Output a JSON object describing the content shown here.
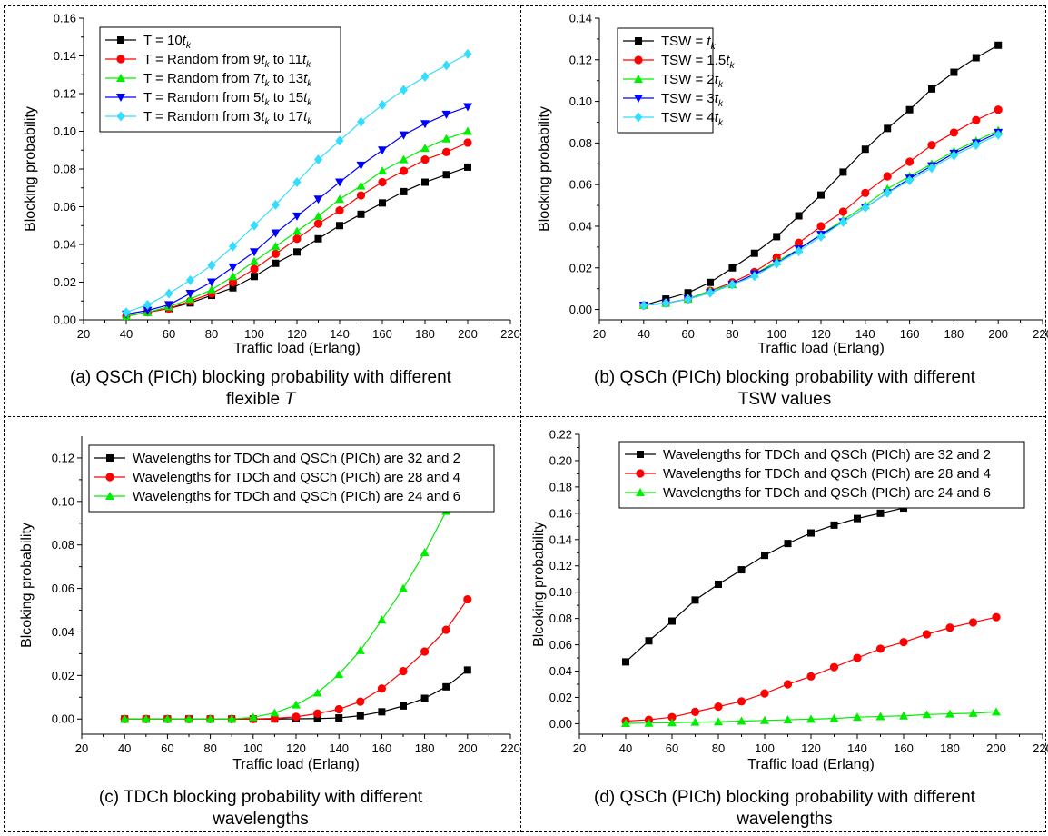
{
  "chart_data": [
    {
      "type": "line",
      "xlabel": "Traffic load (Erlang)",
      "ylabel": "Blocking probability",
      "xlim": [
        20,
        220
      ],
      "ylim": [
        0,
        0.16
      ],
      "x_ticks": [
        "20",
        "40",
        "60",
        "80",
        "100",
        "120",
        "140",
        "160",
        "180",
        "200",
        "220"
      ],
      "y_ticks": [
        "0.00",
        "0.02",
        "0.04",
        "0.06",
        "0.08",
        "0.10",
        "0.12",
        "0.14",
        "0.16"
      ],
      "legend_position": "top-left",
      "caption_line1": "(a) QSCh (PICh) blocking probability with different",
      "caption_line2": "flexible ",
      "caption_line2_italic": "T",
      "x": [
        40,
        50,
        60,
        70,
        80,
        90,
        100,
        110,
        120,
        130,
        140,
        150,
        160,
        170,
        180,
        190,
        200
      ],
      "series": [
        {
          "name_pre": "T = 10",
          "name_var": "t",
          "name_sub": "k",
          "name_post": "",
          "color": "#000000",
          "marker": "square",
          "values": [
            0.002,
            0.004,
            0.006,
            0.009,
            0.013,
            0.017,
            0.023,
            0.03,
            0.036,
            0.043,
            0.05,
            0.056,
            0.062,
            0.068,
            0.073,
            0.077,
            0.081
          ]
        },
        {
          "name_pre": "T = Random from 9",
          "name_var": "t",
          "name_sub": "k",
          "name_post": " to 11",
          "name_var2": "t",
          "name_sub2": "k",
          "color": "#ff0000",
          "marker": "circle",
          "values": [
            0.002,
            0.004,
            0.006,
            0.01,
            0.014,
            0.02,
            0.027,
            0.035,
            0.043,
            0.051,
            0.058,
            0.066,
            0.073,
            0.079,
            0.085,
            0.089,
            0.094
          ]
        },
        {
          "name_pre": "T = Random from 7",
          "name_var": "t",
          "name_sub": "k",
          "name_post": " to 13",
          "name_var2": "t",
          "name_sub2": "k",
          "color": "#00ee00",
          "marker": "triangle-up",
          "values": [
            0.002,
            0.004,
            0.007,
            0.011,
            0.016,
            0.023,
            0.031,
            0.039,
            0.047,
            0.055,
            0.064,
            0.071,
            0.079,
            0.085,
            0.091,
            0.096,
            0.1
          ]
        },
        {
          "name_pre": "T = Random from 5",
          "name_var": "t",
          "name_sub": "k",
          "name_post": " to 15",
          "name_var2": "t",
          "name_sub2": "k",
          "color": "#0000ff",
          "marker": "triangle-down",
          "values": [
            0.003,
            0.005,
            0.008,
            0.014,
            0.02,
            0.028,
            0.036,
            0.046,
            0.055,
            0.064,
            0.073,
            0.082,
            0.09,
            0.098,
            0.104,
            0.109,
            0.113
          ]
        },
        {
          "name_pre": "T = Random from 3",
          "name_var": "t",
          "name_sub": "k",
          "name_post": " to 17",
          "name_var2": "t",
          "name_sub2": "k",
          "color": "#33ddff",
          "marker": "diamond",
          "values": [
            0.004,
            0.008,
            0.014,
            0.021,
            0.029,
            0.039,
            0.05,
            0.061,
            0.073,
            0.085,
            0.095,
            0.105,
            0.114,
            0.122,
            0.129,
            0.135,
            0.141
          ]
        }
      ]
    },
    {
      "type": "line",
      "xlabel": "Traffic load (Erlang)",
      "ylabel": "Blocking probability",
      "xlim": [
        20,
        220
      ],
      "ylim": [
        -0.005,
        0.14
      ],
      "x_ticks": [
        "20",
        "40",
        "60",
        "80",
        "100",
        "120",
        "140",
        "160",
        "180",
        "200",
        "220"
      ],
      "y_ticks": [
        "0.00",
        "0.02",
        "0.04",
        "0.06",
        "0.08",
        "0.10",
        "0.12",
        "0.14"
      ],
      "legend_position": "top-left",
      "caption_line1": "(b) QSCh (PICh) blocking probability with different",
      "caption_line2": "TSW values",
      "caption_line2_italic": "",
      "x": [
        40,
        50,
        60,
        70,
        80,
        90,
        100,
        110,
        120,
        130,
        140,
        150,
        160,
        170,
        180,
        190,
        200
      ],
      "series": [
        {
          "name_pre": "TSW = ",
          "name_var": "t",
          "name_sub": "k",
          "name_post": "",
          "color": "#000000",
          "marker": "square",
          "values": [
            0.002,
            0.005,
            0.008,
            0.013,
            0.02,
            0.027,
            0.035,
            0.045,
            0.055,
            0.066,
            0.077,
            0.087,
            0.096,
            0.106,
            0.114,
            0.121,
            0.127
          ]
        },
        {
          "name_pre": "TSW = 1.5",
          "name_var": "t",
          "name_sub": "k",
          "name_post": "",
          "color": "#ff0000",
          "marker": "circle",
          "values": [
            0.002,
            0.003,
            0.005,
            0.009,
            0.013,
            0.018,
            0.025,
            0.032,
            0.04,
            0.047,
            0.056,
            0.064,
            0.071,
            0.079,
            0.085,
            0.091,
            0.096
          ]
        },
        {
          "name_pre": "TSW = 2",
          "name_var": "t",
          "name_sub": "k",
          "name_post": "",
          "color": "#00ee00",
          "marker": "triangle-up",
          "values": [
            0.002,
            0.003,
            0.005,
            0.009,
            0.012,
            0.017,
            0.023,
            0.029,
            0.036,
            0.043,
            0.05,
            0.058,
            0.064,
            0.07,
            0.076,
            0.081,
            0.086
          ]
        },
        {
          "name_pre": "TSW = 3",
          "name_var": "t",
          "name_sub": "k",
          "name_post": "",
          "color": "#0000ff",
          "marker": "triangle-down",
          "values": [
            0.002,
            0.003,
            0.005,
            0.008,
            0.012,
            0.017,
            0.022,
            0.029,
            0.036,
            0.042,
            0.049,
            0.056,
            0.063,
            0.069,
            0.075,
            0.08,
            0.085
          ]
        },
        {
          "name_pre": "TSW = 4",
          "name_var": "t",
          "name_sub": "k",
          "name_post": "",
          "color": "#33ddff",
          "marker": "diamond",
          "values": [
            0.002,
            0.003,
            0.005,
            0.008,
            0.012,
            0.016,
            0.022,
            0.028,
            0.035,
            0.042,
            0.049,
            0.056,
            0.062,
            0.068,
            0.074,
            0.079,
            0.084
          ]
        }
      ]
    },
    {
      "type": "line",
      "xlabel": "Traffic load (Erlang)",
      "ylabel": "Blcoking probability",
      "xlim": [
        20,
        220
      ],
      "ylim": [
        -0.007,
        0.13
      ],
      "x_ticks": [
        "20",
        "40",
        "60",
        "80",
        "100",
        "120",
        "140",
        "160",
        "180",
        "200",
        "220"
      ],
      "y_ticks": [
        "0.00",
        "0.02",
        "0.04",
        "0.06",
        "0.08",
        "0.10",
        "0.12"
      ],
      "legend_position": "top-right",
      "caption_line1": "(c) TDCh blocking probability with different",
      "caption_line2": "wavelengths",
      "caption_line2_italic": "",
      "x": [
        40,
        50,
        60,
        70,
        80,
        90,
        100,
        110,
        120,
        130,
        140,
        150,
        160,
        170,
        180,
        190,
        200
      ],
      "series": [
        {
          "name_pre": "Wavelengths for TDCh and QSCh (PICh) are 32 and 2",
          "color": "#000000",
          "marker": "square",
          "values": [
            0,
            0,
            0,
            0,
            0,
            0,
            0,
            0,
            0.0001,
            0.0002,
            0.0005,
            0.0015,
            0.0033,
            0.006,
            0.0095,
            0.0148,
            0.0225
          ]
        },
        {
          "name_pre": "Wavelengths for TDCh and QSCh (PICh) are 28 and 4",
          "color": "#ff0000",
          "marker": "circle",
          "values": [
            0,
            0,
            0,
            0,
            0,
            0,
            0,
            0.0003,
            0.001,
            0.0025,
            0.0045,
            0.008,
            0.014,
            0.022,
            0.031,
            0.041,
            0.055
          ]
        },
        {
          "name_pre": "Wavelengths for TDCh and QSCh (PICh) are 24 and 6",
          "color": "#00ee00",
          "marker": "triangle-up",
          "values": [
            0,
            0,
            0,
            0,
            0,
            0,
            0.0008,
            0.0028,
            0.0065,
            0.012,
            0.0205,
            0.0315,
            0.0455,
            0.06,
            0.0765,
            0.0955,
            0.112
          ]
        }
      ]
    },
    {
      "type": "line",
      "xlabel": "Traffic load (Erlang)",
      "ylabel": "Blcoking probability",
      "xlim": [
        20,
        220
      ],
      "ylim": [
        -0.008,
        0.22
      ],
      "x_ticks": [
        "20",
        "40",
        "60",
        "80",
        "100",
        "120",
        "140",
        "160",
        "180",
        "200",
        "220"
      ],
      "y_ticks": [
        "0.00",
        "0.02",
        "0.04",
        "0.06",
        "0.08",
        "0.10",
        "0.12",
        "0.14",
        "0.16",
        "0.18",
        "0.20",
        "0.22"
      ],
      "legend_position": "top-left",
      "caption_line1": "(d) QSCh (PICh) blocking probability with different",
      "caption_line2": "wavelengths",
      "caption_line2_italic": "",
      "x": [
        40,
        50,
        60,
        70,
        80,
        90,
        100,
        110,
        120,
        130,
        140,
        150,
        160,
        170,
        180,
        190,
        200
      ],
      "series": [
        {
          "name_pre": "Wavelengths for TDCh and QSCh (PICh) are 32 and 2",
          "color": "#000000",
          "marker": "square",
          "values": [
            0.047,
            0.063,
            0.078,
            0.094,
            0.106,
            0.117,
            0.128,
            0.137,
            0.145,
            0.151,
            0.156,
            0.16,
            0.164,
            0.167,
            0.169,
            0.171,
            0.173
          ]
        },
        {
          "name_pre": "Wavelengths for TDCh and QSCh (PICh) are 28 and 4",
          "color": "#ff0000",
          "marker": "circle",
          "values": [
            0.002,
            0.003,
            0.005,
            0.009,
            0.013,
            0.017,
            0.023,
            0.03,
            0.036,
            0.043,
            0.05,
            0.057,
            0.062,
            0.068,
            0.073,
            0.077,
            0.081
          ]
        },
        {
          "name_pre": "Wavelengths for TDCh and QSCh (PICh) are 24 and 6",
          "color": "#00ee00",
          "marker": "triangle-up",
          "values": [
            0.0003,
            0.0005,
            0.0008,
            0.0012,
            0.0015,
            0.002,
            0.0025,
            0.003,
            0.0035,
            0.004,
            0.005,
            0.0055,
            0.006,
            0.007,
            0.0075,
            0.008,
            0.009
          ]
        }
      ]
    }
  ]
}
